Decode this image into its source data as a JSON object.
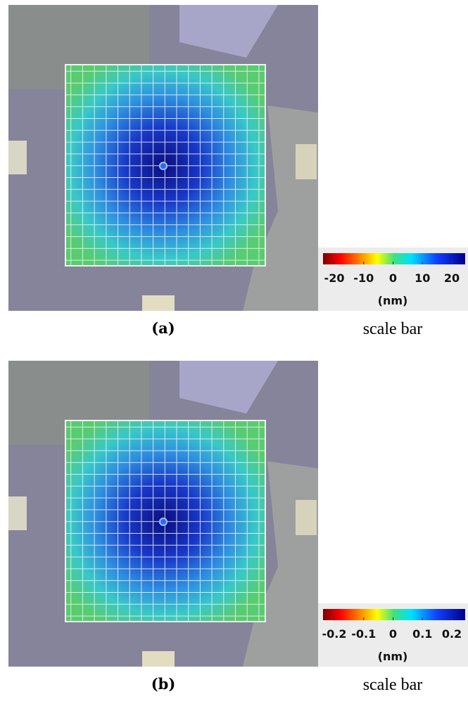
{
  "panels": [
    {
      "label": "(a)",
      "caption": "scale bar",
      "colorbar": {
        "ticks": [
          -20,
          -10,
          0,
          10,
          20
        ],
        "unit": "(nm)"
      }
    },
    {
      "label": "(b)",
      "caption": "scale bar",
      "colorbar": {
        "ticks": [
          -0.2,
          -0.1,
          0,
          0.1,
          0.2
        ],
        "unit": "(nm)"
      }
    }
  ]
}
